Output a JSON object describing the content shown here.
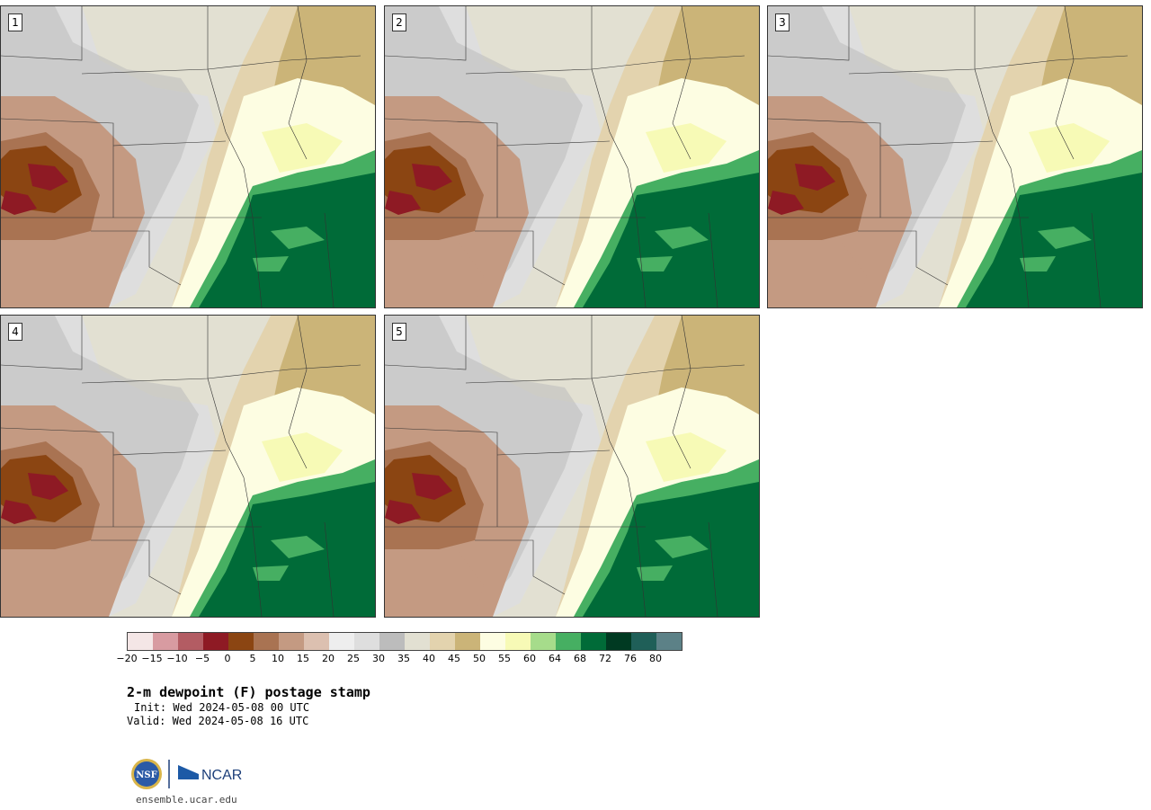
{
  "panels": [
    {
      "label": "1"
    },
    {
      "label": "2"
    },
    {
      "label": "3"
    },
    {
      "label": "4"
    },
    {
      "label": "5"
    }
  ],
  "colorbar": {
    "colors": [
      "#f4e6e6",
      "#d89ba1",
      "#b35c63",
      "#8e1a24",
      "#8b4512",
      "#a97352",
      "#c49a82",
      "#dcc0b0",
      "#eeeeee",
      "#dedede",
      "#bcbcbc",
      "#e2e0d2",
      "#e3d3ae",
      "#cbb478",
      "#fdfde2",
      "#f7fab6",
      "#a6dc8b",
      "#46af62",
      "#006b38",
      "#003a22",
      "#1f5f58",
      "#5c8187"
    ],
    "ticks": [
      "−20",
      "−15",
      "−10",
      "−5",
      "0",
      "5",
      "10",
      "15",
      "20",
      "25",
      "30",
      "35",
      "40",
      "45",
      "50",
      "55",
      "60",
      "64",
      "68",
      "72",
      "76",
      "80"
    ]
  },
  "title": "2-m dewpoint (F) postage stamp",
  "init": "Init: Wed 2024-05-08 00 UTC",
  "valid": "Valid: Wed 2024-05-08 16 UTC",
  "logo": {
    "nsf_text": "NSF",
    "ncar_text": "NCAR"
  },
  "site": "ensemble.ucar.edu"
}
